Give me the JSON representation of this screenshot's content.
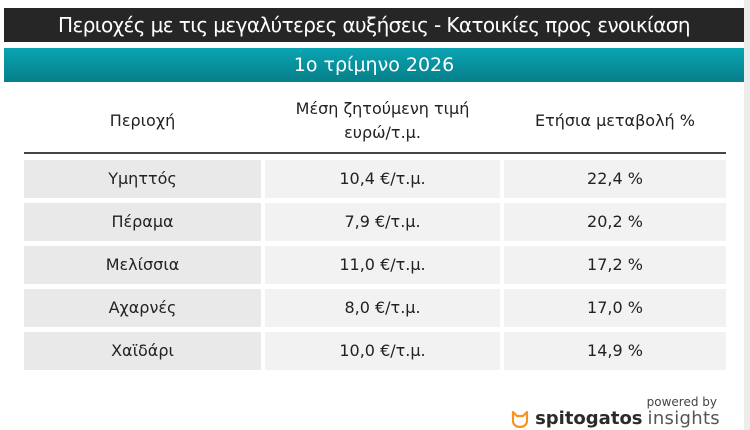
{
  "title": "Περιοχές με τις μεγαλύτερες αυξήσεις - Κατοικίες προς ενοικίαση",
  "subtitle": "1ο τρίμηνο 2026",
  "headers": [
    "Περιοχή",
    "Μέση ζητούμενη τιμή ευρώ/τ.μ.",
    "Ετήσια μεταβολή %"
  ],
  "rows": [
    [
      "Υμηττός",
      "10,4 €/τ.μ.",
      "22,4 %"
    ],
    [
      "Πέραμα",
      "7,9 €/τ.μ.",
      "20,2 %"
    ],
    [
      "Μελίσσια",
      "11,0 €/τ.μ.",
      "17,2 %"
    ],
    [
      "Αχαρνές",
      "8,0 €/τ.μ.",
      "17,0 %"
    ],
    [
      "Χαϊδάρι",
      "10,0 €/τ.μ.",
      "14,9 %"
    ]
  ],
  "footer": {
    "powered": "powered by",
    "brand": "spitogatos",
    "brand_suffix": "insights",
    "logo_icon": "cat-icon",
    "accent": "#f7931e"
  },
  "colors": {
    "title_bg": "#262626",
    "subtitle_bg": "#0893a0"
  }
}
